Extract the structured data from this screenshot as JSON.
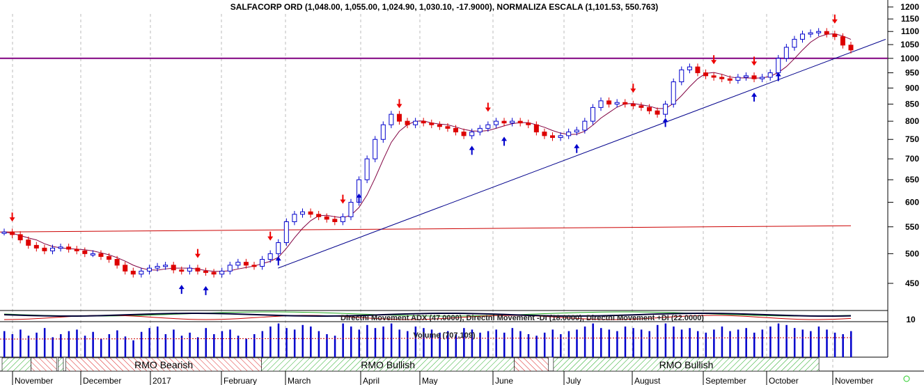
{
  "chart_data": {
    "type": "candlestick",
    "title": "SALFACORP ORD (1,048.00, 1,055.00, 1,024.90, 1,030.10, -17.9000), NORMALIZA ESCALA (1,101.53, 550.763)",
    "yscale": "log",
    "ylim": [
      420,
      1220
    ],
    "yticks": [
      1200,
      1150,
      1100,
      1050,
      1000,
      950,
      900,
      850,
      800,
      750,
      700,
      650,
      600,
      550,
      500,
      450
    ],
    "months": [
      "November",
      "December",
      "2017",
      "February",
      "March",
      "April",
      "May",
      "June",
      "July",
      "August",
      "September",
      "October",
      "November"
    ],
    "closes": [
      540,
      535,
      525,
      515,
      510,
      505,
      510,
      512,
      508,
      505,
      500,
      500,
      495,
      490,
      480,
      470,
      465,
      470,
      475,
      478,
      480,
      472,
      470,
      475,
      470,
      468,
      465,
      470,
      480,
      485,
      480,
      478,
      490,
      500,
      520,
      560,
      575,
      580,
      575,
      570,
      565,
      560,
      570,
      600,
      650,
      700,
      750,
      790,
      820,
      800,
      790,
      800,
      795,
      790,
      785,
      780,
      770,
      760,
      770,
      780,
      790,
      800,
      795,
      800,
      795,
      790,
      770,
      760,
      755,
      760,
      770,
      775,
      800,
      840,
      860,
      850,
      855,
      850,
      845,
      840,
      830,
      820,
      850,
      920,
      960,
      970,
      950,
      940,
      935,
      930,
      925,
      935,
      940,
      930,
      935,
      950,
      1000,
      1040,
      1070,
      1090,
      1095,
      1100,
      1090,
      1080,
      1048,
      1030
    ],
    "signals": [
      {
        "i": 1,
        "d": "down"
      },
      {
        "i": 22,
        "d": "up"
      },
      {
        "i": 24,
        "d": "down"
      },
      {
        "i": 25,
        "d": "up"
      },
      {
        "i": 33,
        "d": "down"
      },
      {
        "i": 34,
        "d": "up"
      },
      {
        "i": 42,
        "d": "down"
      },
      {
        "i": 44,
        "d": "up"
      },
      {
        "i": 49,
        "d": "down"
      },
      {
        "i": 58,
        "d": "up"
      },
      {
        "i": 60,
        "d": "down"
      },
      {
        "i": 62,
        "d": "up"
      },
      {
        "i": 71,
        "d": "up"
      },
      {
        "i": 78,
        "d": "down"
      },
      {
        "i": 82,
        "d": "up"
      },
      {
        "i": 88,
        "d": "down"
      },
      {
        "i": 93,
        "d": "down"
      },
      {
        "i": 93,
        "d": "up"
      },
      {
        "i": 96,
        "d": "up"
      },
      {
        "i": 103,
        "d": "down"
      }
    ],
    "resistance": 1000,
    "normalized_line": [
      540,
      552
    ],
    "indicator_label": "Directnl Movement ADX (47.0000), Directnl Movement -DI (18.0000), Directnl Movement +DI (22.0000)",
    "indicator_tick": "10",
    "volume_label": "Volume (707,109)",
    "volume": [
      34,
      30,
      36,
      28,
      32,
      38,
      26,
      30,
      34,
      36,
      28,
      33,
      24,
      30,
      35,
      27,
      22,
      33,
      38,
      40,
      30,
      36,
      28,
      32,
      26,
      38,
      30,
      34,
      36,
      28,
      24,
      30,
      34,
      40,
      44,
      38,
      36,
      42,
      40,
      34,
      30,
      28,
      44,
      40,
      36,
      42,
      38,
      40,
      44,
      36,
      34,
      40,
      38,
      36,
      32,
      34,
      30,
      38,
      36,
      32,
      34,
      36,
      32,
      38,
      34,
      30,
      28,
      32,
      36,
      30,
      34,
      36,
      40,
      44,
      38,
      36,
      34,
      40,
      38,
      36,
      34,
      42,
      44,
      40,
      36,
      38,
      34,
      32,
      36,
      40,
      34,
      36,
      38,
      32,
      36,
      40,
      44,
      42,
      38,
      36,
      34,
      40,
      36,
      32,
      30,
      34
    ],
    "rmo": [
      {
        "from": 0,
        "to": 0.034,
        "type": "bullish",
        "label": ""
      },
      {
        "from": 0.034,
        "to": 0.064,
        "type": "bearish",
        "label": ""
      },
      {
        "from": 0.066,
        "to": 0.072,
        "type": "bullish",
        "label": ""
      },
      {
        "from": 0.075,
        "to": 0.305,
        "type": "bearish",
        "label": "RMO Bearish"
      },
      {
        "from": 0.305,
        "to": 0.602,
        "type": "bullish",
        "label": "RMO Bullish"
      },
      {
        "from": 0.602,
        "to": 0.642,
        "type": "bearish",
        "label": ""
      },
      {
        "from": 0.648,
        "to": 0.96,
        "type": "bullish",
        "label": "RMO Bullish"
      }
    ]
  }
}
